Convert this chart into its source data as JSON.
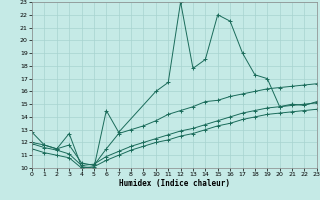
{
  "xlabel": "Humidex (Indice chaleur)",
  "bg_color": "#c5eae6",
  "grid_color": "#a8d4d0",
  "line_color": "#1a6b5a",
  "xlim": [
    0,
    23
  ],
  "ylim": [
    10,
    23
  ],
  "xticks": [
    0,
    1,
    2,
    3,
    4,
    5,
    6,
    7,
    8,
    9,
    10,
    11,
    12,
    13,
    14,
    15,
    16,
    17,
    18,
    19,
    20,
    21,
    22,
    23
  ],
  "yticks": [
    10,
    11,
    12,
    13,
    14,
    15,
    16,
    17,
    18,
    19,
    20,
    21,
    22,
    23
  ],
  "lines": [
    {
      "x": [
        0,
        1,
        2,
        3,
        4,
        5,
        6,
        7,
        10,
        11,
        12,
        13,
        14,
        15,
        16,
        17,
        18,
        19,
        20,
        21,
        22,
        23
      ],
      "y": [
        12.8,
        11.8,
        11.5,
        12.7,
        10.1,
        10.0,
        14.5,
        12.8,
        16.0,
        16.7,
        23.0,
        17.8,
        18.5,
        22.0,
        21.5,
        19.0,
        17.3,
        17.0,
        14.8,
        15.0,
        14.9,
        15.2
      ]
    },
    {
      "x": [
        0,
        1,
        2,
        3,
        4,
        5,
        6,
        7,
        8,
        9,
        10,
        11,
        12,
        13,
        14,
        15,
        16,
        17,
        18,
        19,
        20,
        21,
        22,
        23
      ],
      "y": [
        12.0,
        11.8,
        11.5,
        11.8,
        10.4,
        10.2,
        11.5,
        12.7,
        13.0,
        13.3,
        13.7,
        14.2,
        14.5,
        14.8,
        15.2,
        15.3,
        15.6,
        15.8,
        16.0,
        16.2,
        16.3,
        16.4,
        16.5,
        16.6
      ]
    },
    {
      "x": [
        0,
        1,
        2,
        3,
        4,
        5,
        6,
        7,
        8,
        9,
        10,
        11,
        12,
        13,
        14,
        15,
        16,
        17,
        18,
        19,
        20,
        21,
        22,
        23
      ],
      "y": [
        11.9,
        11.6,
        11.4,
        11.1,
        10.2,
        10.3,
        10.9,
        11.3,
        11.7,
        12.0,
        12.3,
        12.6,
        12.9,
        13.1,
        13.4,
        13.7,
        14.0,
        14.3,
        14.5,
        14.7,
        14.8,
        14.9,
        15.0,
        15.1
      ]
    },
    {
      "x": [
        0,
        1,
        2,
        3,
        4,
        5,
        6,
        7,
        8,
        9,
        10,
        11,
        12,
        13,
        14,
        15,
        16,
        17,
        18,
        19,
        20,
        21,
        22,
        23
      ],
      "y": [
        11.5,
        11.2,
        11.0,
        10.8,
        10.0,
        10.1,
        10.6,
        11.0,
        11.4,
        11.7,
        12.0,
        12.2,
        12.5,
        12.7,
        13.0,
        13.3,
        13.5,
        13.8,
        14.0,
        14.2,
        14.3,
        14.4,
        14.5,
        14.6
      ]
    }
  ]
}
